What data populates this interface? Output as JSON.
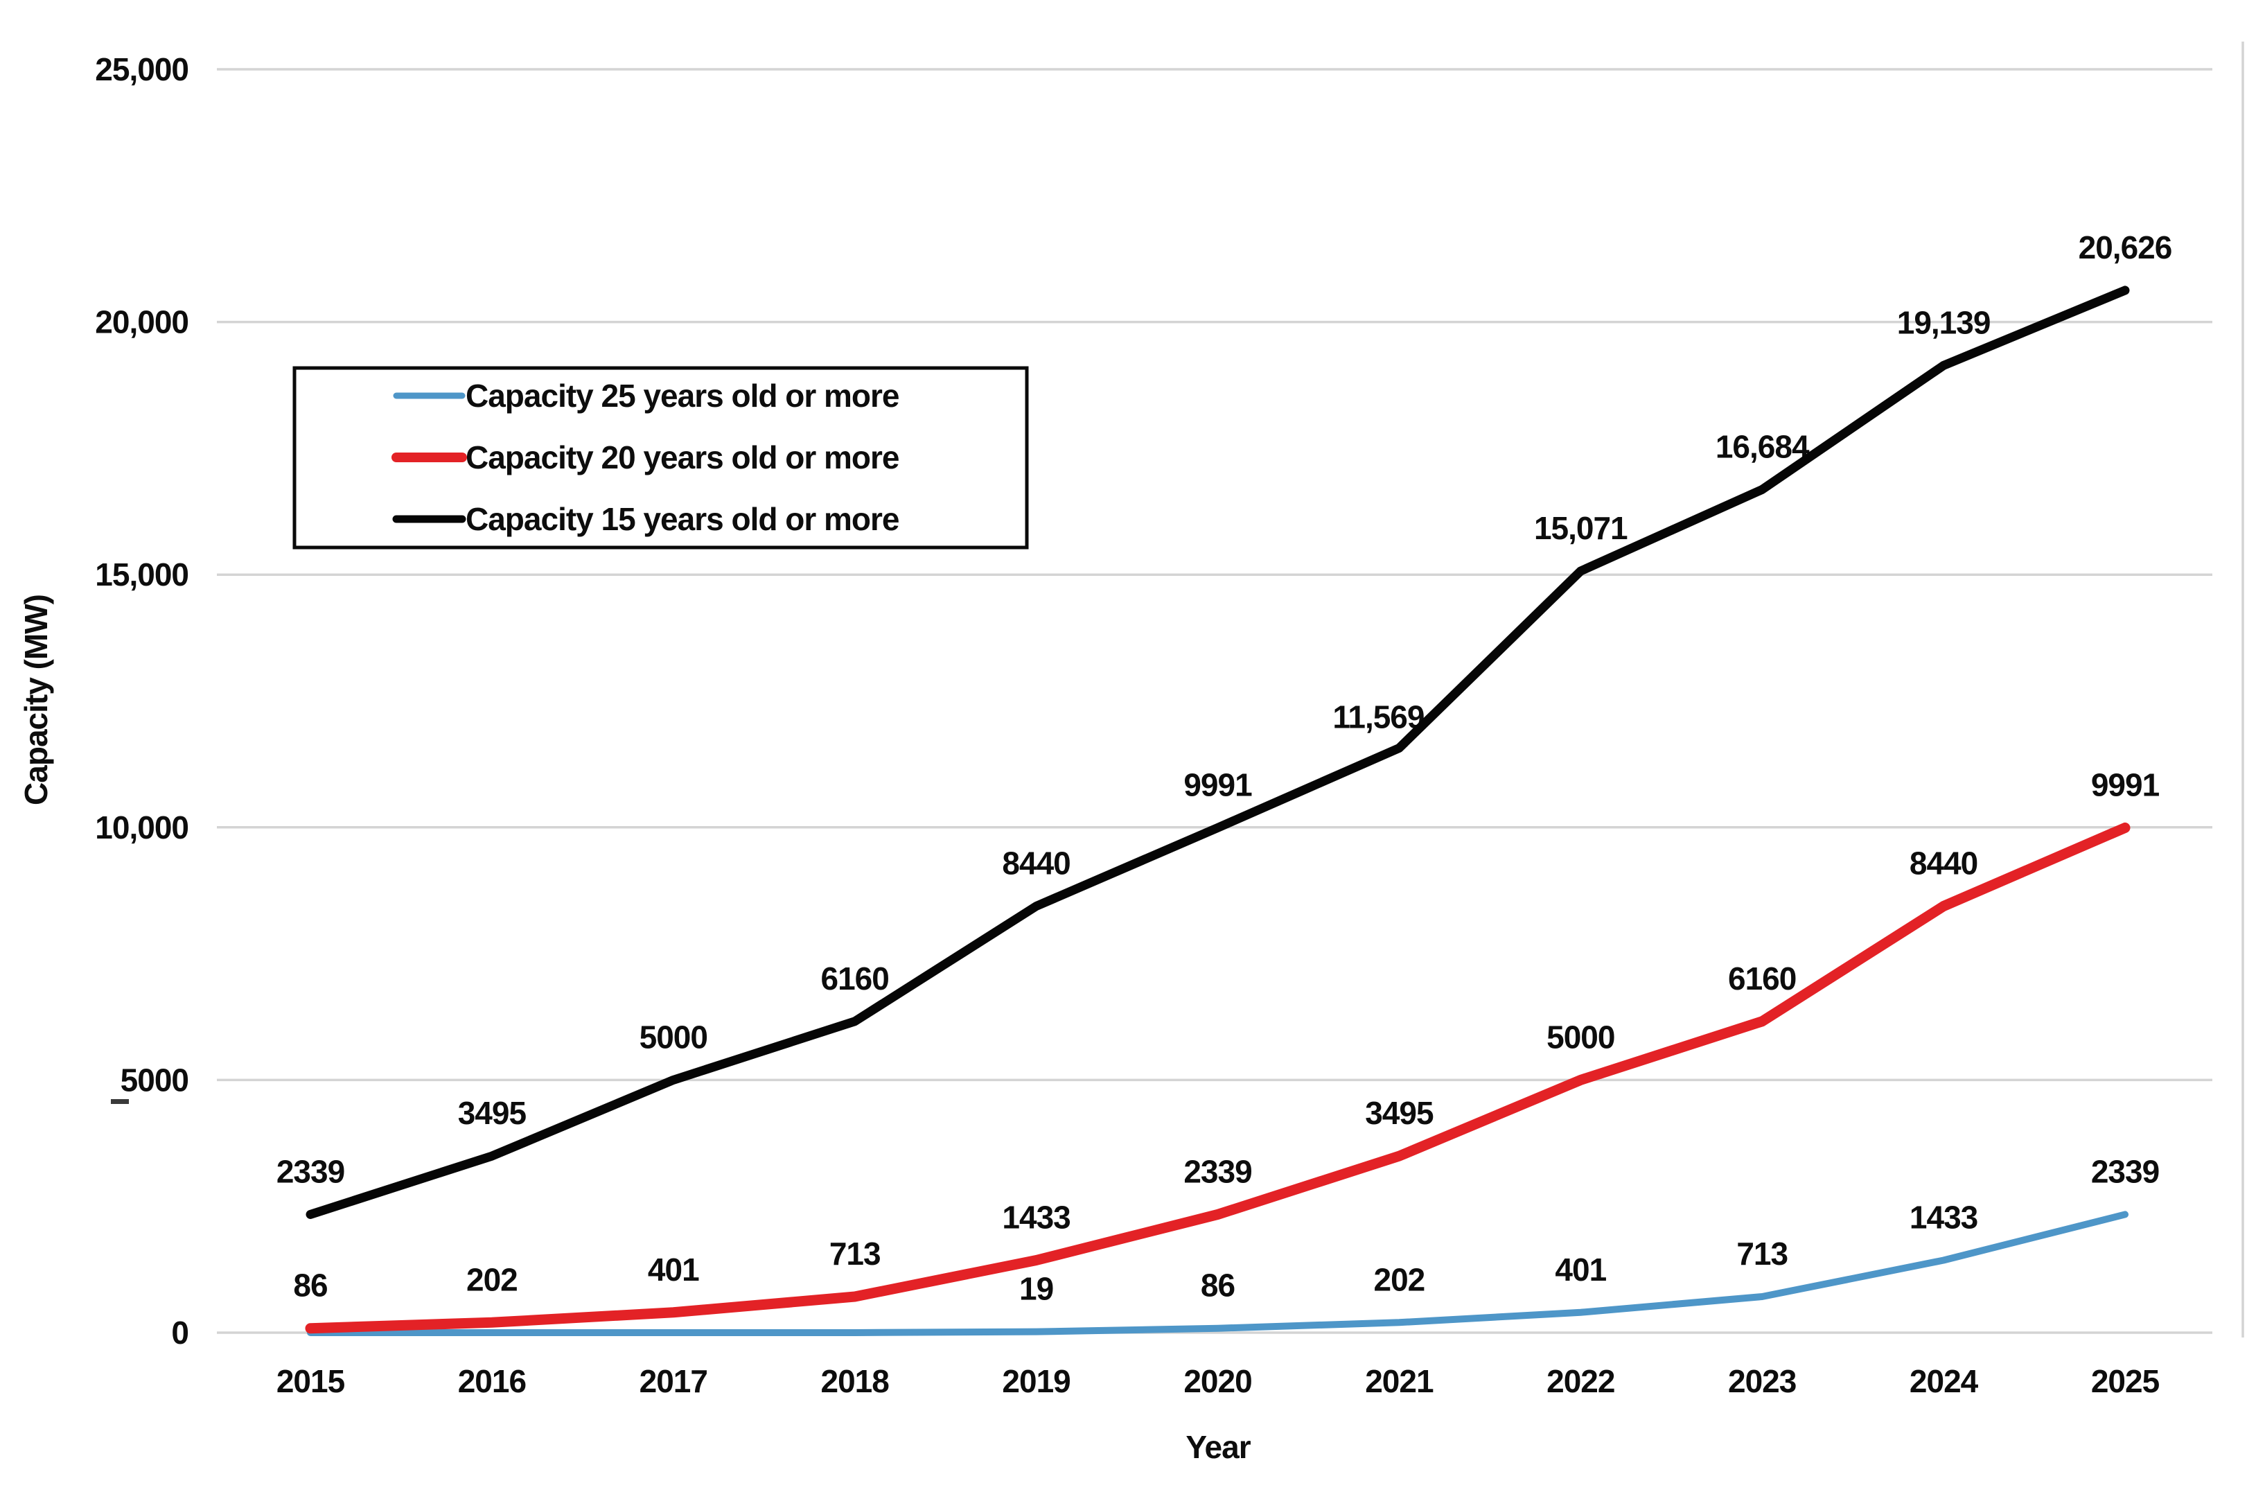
{
  "page": {
    "background": "#ffffff",
    "grid_color": "#d4d4d4",
    "text_color": "#0d0d0d"
  },
  "chart_data": {
    "type": "line",
    "title": "",
    "xlabel": "Year",
    "ylabel": "Capacity (MW)",
    "categories": [
      "2015",
      "2016",
      "2017",
      "2018",
      "2019",
      "2020",
      "2021",
      "2022",
      "2023",
      "2024",
      "2025"
    ],
    "ylim": [
      0,
      25000
    ],
    "yticks": [
      {
        "value": 0,
        "label": "0"
      },
      {
        "value": 5000,
        "label": "5000"
      },
      {
        "value": 10000,
        "label": "10,000"
      },
      {
        "value": 15000,
        "label": "15,000"
      },
      {
        "value": 20000,
        "label": "20,000"
      },
      {
        "value": 25000,
        "label": "25,000"
      }
    ],
    "grid": true,
    "legend_position": "upper-left-box",
    "series": [
      {
        "id": "25yr",
        "name": "Capacity 25 years old or more",
        "color": "#4e96c8",
        "values": [
          0,
          0,
          0,
          0,
          19,
          86,
          202,
          401,
          713,
          1433,
          2339
        ],
        "labels": [
          "",
          "",
          "",
          "",
          "19",
          "86",
          "202",
          "401",
          "713",
          "1433",
          "2339"
        ]
      },
      {
        "id": "20yr",
        "name": "Capacity 20 years old or more",
        "color": "#e32226",
        "values": [
          86,
          202,
          401,
          713,
          1433,
          2339,
          3495,
          5000,
          6160,
          8440,
          9991
        ],
        "labels": [
          "86",
          "202",
          "401",
          "713",
          "1433",
          "2339",
          "3495",
          "5000",
          "6160",
          "8440",
          "9991"
        ]
      },
      {
        "id": "15yr",
        "name": "Capacity 15 years old or more",
        "color": "#060606",
        "values": [
          2339,
          3495,
          5000,
          6160,
          8440,
          9991,
          11569,
          15071,
          16684,
          19139,
          20626
        ],
        "labels": [
          "2339",
          "3495",
          "5000",
          "6160",
          "8440",
          "9991",
          "11,569",
          "15,071",
          "16,684",
          "19,139",
          "20,626"
        ]
      }
    ]
  }
}
